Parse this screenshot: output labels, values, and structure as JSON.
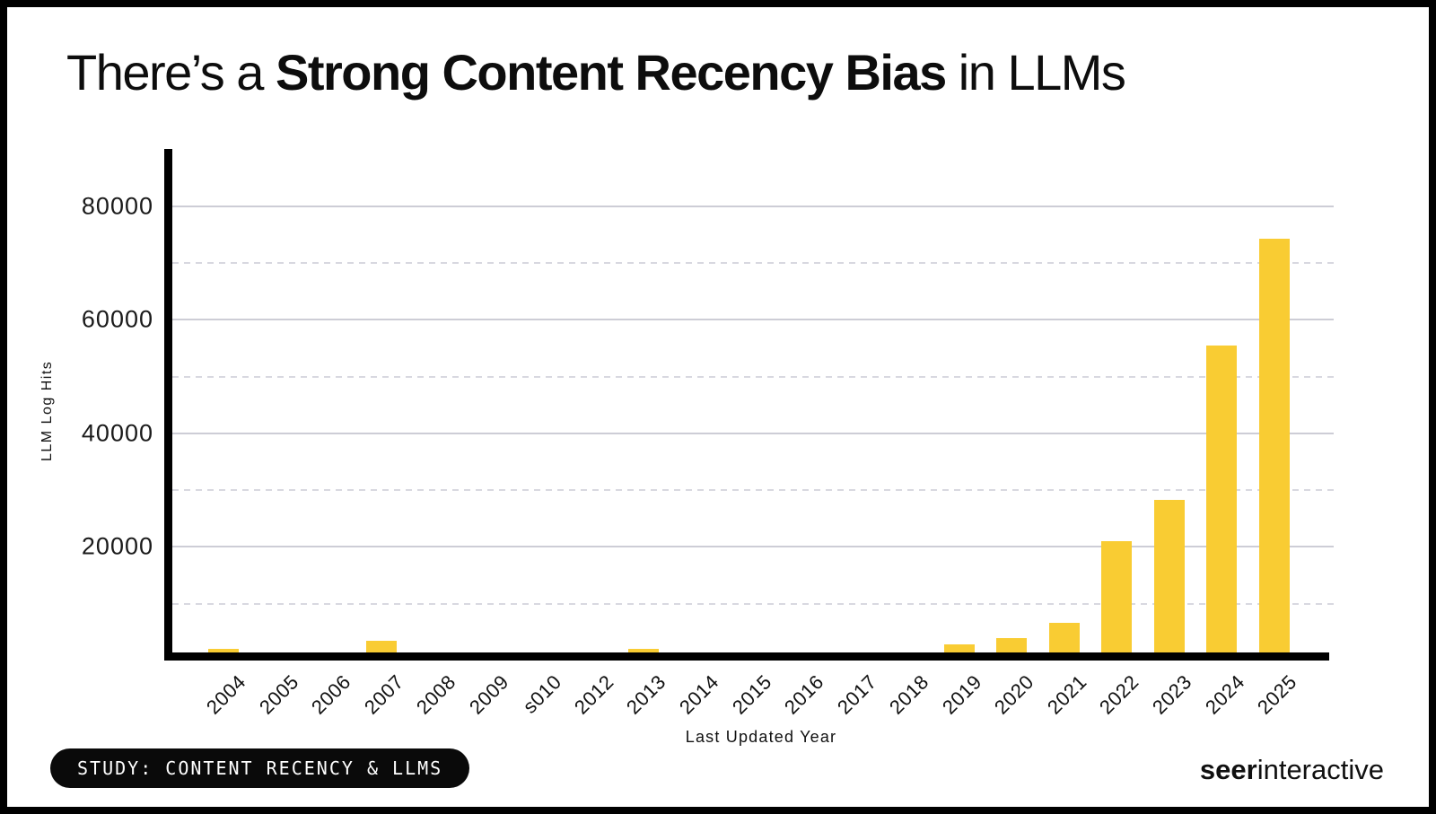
{
  "title": {
    "prefix": "There’s a ",
    "bold": "Strong Content Recency Bias",
    "suffix": " in LLMs"
  },
  "chart_data": {
    "type": "bar",
    "title": "There’s a Strong Content Recency Bias in LLMs",
    "categories": [
      "2004",
      "2005",
      "2006",
      "2007",
      "2008",
      "2009",
      "s010",
      "2012",
      "2013",
      "2014",
      "2015",
      "2016",
      "2017",
      "2018",
      "2019",
      "2020",
      "2021",
      "2022",
      "2023",
      "2024",
      "2025"
    ],
    "values": [
      2000,
      1500,
      1500,
      3400,
      0,
      0,
      0,
      0,
      2100,
      0,
      0,
      0,
      0,
      0,
      2900,
      3900,
      6600,
      21000,
      28300,
      55500,
      74300
    ],
    "xlabel": "Last Updated Year",
    "ylabel": "LLM Log Hits",
    "ylim": [
      0,
      85000
    ],
    "yticks_labeled": [
      20000,
      40000,
      60000,
      80000
    ],
    "yticks_dashed": [
      10000,
      30000,
      50000,
      70000
    ],
    "grid": true,
    "legend_position": "none",
    "bar_color": "#F9CC33",
    "axis_color": "#000000",
    "gridline_solid_color": "#cdcdd6",
    "gridline_dashed_color": "#d8d8e0"
  },
  "footer": {
    "badge": "STUDY: CONTENT RECENCY & LLMS",
    "brand_bold": "seer",
    "brand_regular": "interactive"
  }
}
